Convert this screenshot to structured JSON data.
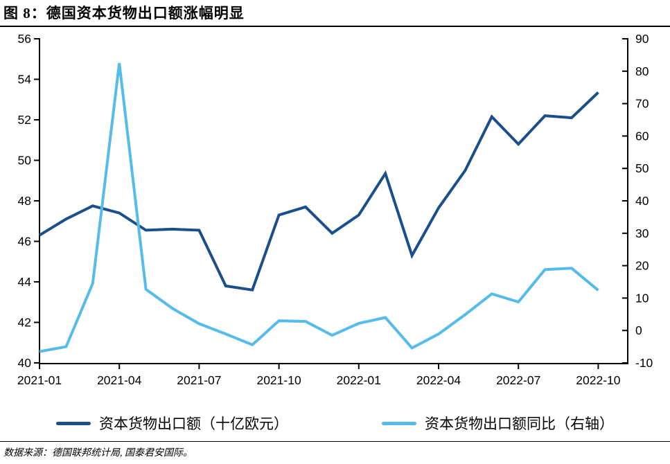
{
  "header": {
    "title": "图 8：德国资本货物出口额涨幅明显"
  },
  "chart_data": {
    "type": "line",
    "x": [
      "2021-01",
      "2021-02",
      "2021-03",
      "2021-04",
      "2021-05",
      "2021-06",
      "2021-07",
      "2021-08",
      "2021-09",
      "2021-10",
      "2021-11",
      "2021-12",
      "2022-01",
      "2022-02",
      "2022-03",
      "2022-04",
      "2022-05",
      "2022-06",
      "2022-07",
      "2022-08",
      "2022-09",
      "2022-10"
    ],
    "x_tick_labels": [
      "2021-01",
      "2021-04",
      "2021-07",
      "2021-10",
      "2022-01",
      "2022-04",
      "2022-07",
      "2022-10"
    ],
    "series": [
      {
        "name": "资本货物出口额（十亿欧元）",
        "axis": "left",
        "color": "#1A4F8C",
        "values": [
          46.3,
          47.1,
          47.75,
          47.4,
          46.55,
          46.6,
          46.55,
          43.8,
          43.6,
          47.3,
          47.7,
          46.4,
          47.3,
          49.35,
          45.3,
          47.65,
          49.5,
          52.15,
          50.8,
          52.2,
          52.1,
          53.35
        ]
      },
      {
        "name": "资本货物出口额同比（右轴）",
        "axis": "right",
        "color": "#55BBEA",
        "values": [
          -6.5,
          -5.0,
          14.5,
          82.5,
          12.7,
          6.8,
          2.1,
          -1.1,
          -4.4,
          3.0,
          2.8,
          -1.5,
          2.2,
          4.0,
          -5.4,
          -1.1,
          4.9,
          11.3,
          8.8,
          18.8,
          19.2,
          12.4
        ]
      }
    ],
    "left_axis": {
      "min": 40,
      "max": 56,
      "step": 2,
      "tick_labels": [
        "40",
        "42",
        "44",
        "46",
        "48",
        "50",
        "52",
        "54",
        "56"
      ]
    },
    "right_axis": {
      "min": -10,
      "max": 90,
      "step": 10,
      "tick_labels": [
        "-10",
        "0",
        "10",
        "20",
        "30",
        "40",
        "50",
        "60",
        "70",
        "80",
        "90"
      ]
    },
    "grid": false,
    "legend_position": "bottom",
    "title": "图 8：德国资本货物出口额涨幅明显"
  },
  "footer": {
    "source": "数据来源：德国联邦统计局, 国泰君安国际。"
  }
}
